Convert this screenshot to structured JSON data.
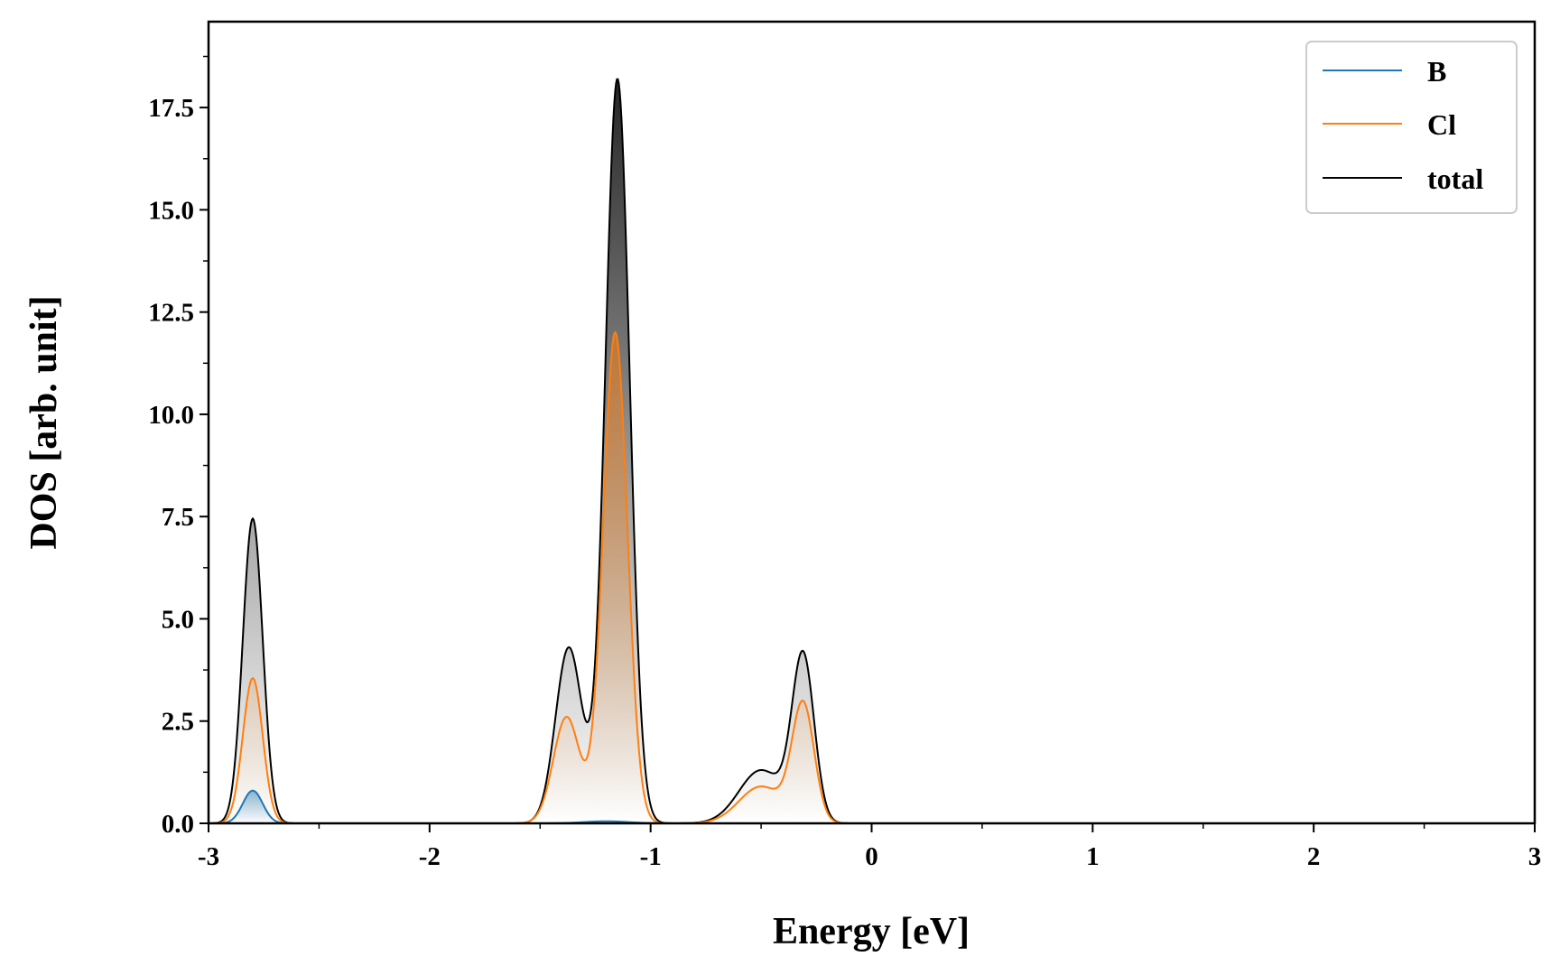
{
  "chart_data": {
    "type": "area",
    "title": "",
    "xlabel": "Energy [eV]",
    "ylabel": "DOS [arb. unit]",
    "xlim": [
      -3,
      3
    ],
    "ylim": [
      0,
      19.6
    ],
    "x_ticks": [
      -3,
      -2,
      -1,
      0,
      1,
      2,
      3
    ],
    "x_tick_labels": [
      "-3",
      "-2",
      "-1",
      "0",
      "1",
      "2",
      "3"
    ],
    "y_ticks": [
      0,
      2.5,
      5,
      7.5,
      10,
      12.5,
      15,
      17.5
    ],
    "y_tick_labels": [
      "0.0",
      "2.5",
      "5.0",
      "7.5",
      "10.0",
      "12.5",
      "15.0",
      "17.5"
    ],
    "grid": false,
    "legend": {
      "position": "top-right",
      "entries": [
        "B",
        "Cl",
        "total"
      ]
    },
    "series": [
      {
        "name": "B",
        "color": "#1f77b4",
        "peaks": [
          {
            "center": -2.8,
            "height": 0.8,
            "width": 0.045
          },
          {
            "center": -1.2,
            "height": 0.05,
            "width": 0.1
          }
        ]
      },
      {
        "name": "Cl",
        "color": "#ff7f0e",
        "peaks": [
          {
            "center": -2.8,
            "height": 3.55,
            "width": 0.045
          },
          {
            "center": -1.38,
            "height": 2.6,
            "width": 0.06
          },
          {
            "center": -1.16,
            "height": 12.0,
            "width": 0.055
          },
          {
            "center": -0.5,
            "height": 0.9,
            "width": 0.1
          },
          {
            "center": -0.31,
            "height": 2.85,
            "width": 0.05
          }
        ]
      },
      {
        "name": "total",
        "color": "#000000",
        "peaks": [
          {
            "center": -2.8,
            "height": 7.45,
            "width": 0.045
          },
          {
            "center": -1.37,
            "height": 4.3,
            "width": 0.06
          },
          {
            "center": -1.15,
            "height": 18.2,
            "width": 0.055
          },
          {
            "center": -0.5,
            "height": 1.3,
            "width": 0.1
          },
          {
            "center": -0.31,
            "height": 4.0,
            "width": 0.05
          }
        ]
      }
    ]
  }
}
